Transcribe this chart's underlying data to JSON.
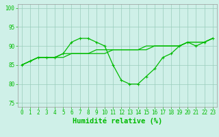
{
  "xlabel": "Humidité relative (%)",
  "xlim": [
    -0.5,
    23.5
  ],
  "ylim": [
    74,
    101
  ],
  "yticks": [
    75,
    80,
    85,
    90,
    95,
    100
  ],
  "xticks": [
    0,
    1,
    2,
    3,
    4,
    5,
    6,
    7,
    8,
    9,
    10,
    11,
    12,
    13,
    14,
    15,
    16,
    17,
    18,
    19,
    20,
    21,
    22,
    23
  ],
  "background_color": "#cff0e8",
  "grid_color": "#99ccbb",
  "line_color": "#00bb00",
  "line1": [
    85,
    86,
    87,
    87,
    87,
    88,
    91,
    92,
    92,
    91,
    90,
    85,
    81,
    80,
    80,
    82,
    84,
    87,
    88,
    90,
    91,
    90,
    91,
    92
  ],
  "line2": [
    85,
    86,
    87,
    87,
    87,
    88,
    88,
    88,
    88,
    89,
    89,
    89,
    89,
    89,
    89,
    90,
    90,
    90,
    90,
    90,
    91,
    91,
    91,
    92
  ],
  "line3": [
    85,
    86,
    87,
    87,
    87,
    87,
    88,
    88,
    88,
    88,
    88,
    89,
    89,
    89,
    89,
    89,
    90,
    90,
    90,
    90,
    91,
    91,
    91,
    92
  ],
  "markersize": 3.5,
  "linewidth": 0.9,
  "tick_fontsize": 5.5,
  "label_fontsize": 7.5
}
